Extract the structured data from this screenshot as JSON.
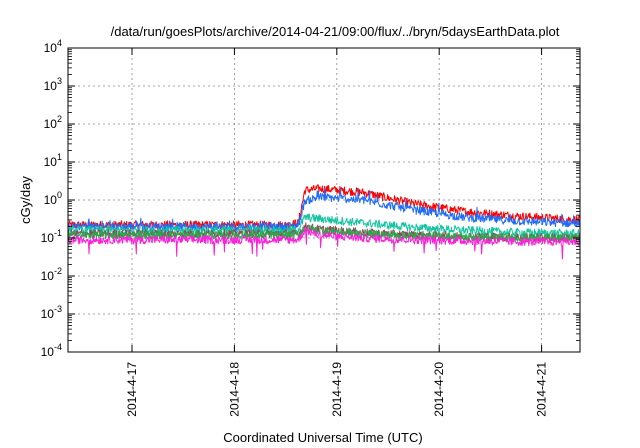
{
  "chart_data": {
    "type": "line",
    "title": "/data/run/goesPlots/archive/2014-04-21/09:00/flux/../bryn/5daysEarthData.plot",
    "xlabel": "Coordinated Universal Time (UTC)",
    "ylabel": "cGy/day",
    "y_scale": "log",
    "ylim": [
      0.0001,
      10000
    ],
    "x_range": [
      "2014-04-16 09:00",
      "2014-04-21 09:00"
    ],
    "grid": true,
    "y_ticks": [
      {
        "base": "10",
        "exp": "-4",
        "value": 0.0001
      },
      {
        "base": "10",
        "exp": "-3",
        "value": 0.001
      },
      {
        "base": "10",
        "exp": "-2",
        "value": 0.01
      },
      {
        "base": "10",
        "exp": "-1",
        "value": 0.1
      },
      {
        "base": "10",
        "exp": "0",
        "value": 1
      },
      {
        "base": "10",
        "exp": "1",
        "value": 10
      },
      {
        "base": "10",
        "exp": "2",
        "value": 100
      },
      {
        "base": "10",
        "exp": "3",
        "value": 1000
      },
      {
        "base": "10",
        "exp": "4",
        "value": 10000
      }
    ],
    "x_ticks": [
      {
        "label": "2014-4-17",
        "date": "2014-04-17 00:00"
      },
      {
        "label": "2014-4-18",
        "date": "2014-04-18 00:00"
      },
      {
        "label": "2014-4-19",
        "date": "2014-04-19 00:00"
      },
      {
        "label": "2014-4-20",
        "date": "2014-04-20 00:00"
      },
      {
        "label": "2014-4-21",
        "date": "2014-04-21 00:00"
      }
    ],
    "series": [
      {
        "color": "#ff0000",
        "points": [
          [
            "2014-04-16 09:00",
            0.22
          ],
          [
            "2014-04-17 12:00",
            0.22
          ],
          [
            "2014-04-18 12:00",
            0.22
          ],
          [
            "2014-04-18 15:00",
            0.25
          ],
          [
            "2014-04-18 16:30",
            1.8
          ],
          [
            "2014-04-18 20:00",
            2.0
          ],
          [
            "2014-04-19 06:00",
            1.6
          ],
          [
            "2014-04-19 18:00",
            0.8
          ],
          [
            "2014-04-20 06:00",
            0.5
          ],
          [
            "2014-04-20 18:00",
            0.38
          ],
          [
            "2014-04-21 09:00",
            0.3
          ]
        ]
      },
      {
        "color": "#1e6bff",
        "points": [
          [
            "2014-04-16 09:00",
            0.2
          ],
          [
            "2014-04-17 12:00",
            0.2
          ],
          [
            "2014-04-18 12:00",
            0.2
          ],
          [
            "2014-04-18 15:00",
            0.22
          ],
          [
            "2014-04-18 16:30",
            0.95
          ],
          [
            "2014-04-18 20:00",
            1.2
          ],
          [
            "2014-04-19 06:00",
            1.0
          ],
          [
            "2014-04-19 18:00",
            0.55
          ],
          [
            "2014-04-20 06:00",
            0.35
          ],
          [
            "2014-04-20 18:00",
            0.28
          ],
          [
            "2014-04-21 09:00",
            0.24
          ]
        ]
      },
      {
        "color": "#14c4a0",
        "points": [
          [
            "2014-04-16 09:00",
            0.16
          ],
          [
            "2014-04-17 12:00",
            0.16
          ],
          [
            "2014-04-18 12:00",
            0.16
          ],
          [
            "2014-04-18 15:00",
            0.17
          ],
          [
            "2014-04-18 16:30",
            0.35
          ],
          [
            "2014-04-18 20:00",
            0.32
          ],
          [
            "2014-04-19 06:00",
            0.25
          ],
          [
            "2014-04-19 18:00",
            0.19
          ],
          [
            "2014-04-20 06:00",
            0.16
          ],
          [
            "2014-04-20 18:00",
            0.14
          ],
          [
            "2014-04-21 09:00",
            0.13
          ]
        ]
      },
      {
        "color": "#8b4a5a",
        "points": [
          [
            "2014-04-16 09:00",
            0.13
          ],
          [
            "2014-04-17 12:00",
            0.13
          ],
          [
            "2014-04-18 12:00",
            0.13
          ],
          [
            "2014-04-18 15:00",
            0.13
          ],
          [
            "2014-04-18 16:30",
            0.2
          ],
          [
            "2014-04-18 20:00",
            0.17
          ],
          [
            "2014-04-19 06:00",
            0.14
          ],
          [
            "2014-04-19 18:00",
            0.12
          ],
          [
            "2014-04-20 06:00",
            0.11
          ],
          [
            "2014-04-20 18:00",
            0.105
          ],
          [
            "2014-04-21 09:00",
            0.1
          ]
        ]
      },
      {
        "color": "#2ba84a",
        "points": [
          [
            "2014-04-16 09:00",
            0.12
          ],
          [
            "2014-04-17 12:00",
            0.12
          ],
          [
            "2014-04-18 12:00",
            0.12
          ],
          [
            "2014-04-18 15:00",
            0.12
          ],
          [
            "2014-04-18 16:30",
            0.18
          ],
          [
            "2014-04-18 20:00",
            0.16
          ],
          [
            "2014-04-19 06:00",
            0.13
          ],
          [
            "2014-04-19 18:00",
            0.115
          ],
          [
            "2014-04-20 06:00",
            0.108
          ],
          [
            "2014-04-20 18:00",
            0.102
          ],
          [
            "2014-04-21 09:00",
            0.1
          ]
        ]
      },
      {
        "color": "#ff1ed8",
        "points": [
          [
            "2014-04-16 09:00",
            0.09
          ],
          [
            "2014-04-17 12:00",
            0.09
          ],
          [
            "2014-04-18 12:00",
            0.09
          ],
          [
            "2014-04-18 15:00",
            0.09
          ],
          [
            "2014-04-18 16:30",
            0.16
          ],
          [
            "2014-04-18 20:00",
            0.12
          ],
          [
            "2014-04-19 06:00",
            0.1
          ],
          [
            "2014-04-19 18:00",
            0.09
          ],
          [
            "2014-04-20 06:00",
            0.085
          ],
          [
            "2014-04-20 18:00",
            0.08
          ],
          [
            "2014-04-21 09:00",
            0.08
          ]
        ]
      }
    ]
  }
}
